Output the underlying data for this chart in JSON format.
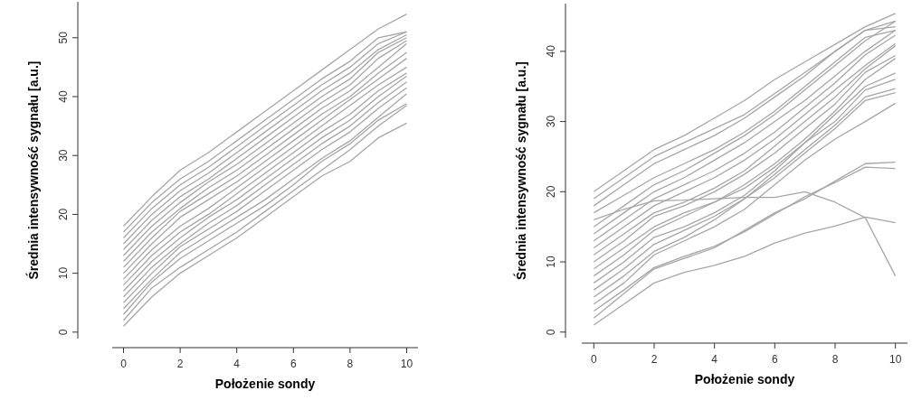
{
  "chart_data": [
    {
      "type": "line",
      "xlabel": "Położenie sondy",
      "ylabel": "Średnia intensywność sygnału [a.u.]",
      "x": [
        0,
        1,
        2,
        3,
        4,
        5,
        6,
        7,
        8,
        9,
        10
      ],
      "xlim": [
        -0.4,
        10.4
      ],
      "ylim": [
        -1.1,
        56.1
      ],
      "xticks": [
        0,
        2,
        4,
        6,
        8,
        10
      ],
      "yticks": [
        0,
        10,
        20,
        30,
        40,
        50
      ],
      "series": [
        {
          "color": "#a6a6a6",
          "values": [
            1,
            6,
            10,
            13,
            16,
            19.5,
            23,
            26.5,
            29,
            33,
            35.5
          ]
        },
        {
          "color": "#a6a6a6",
          "values": [
            2,
            7.5,
            11,
            14,
            17,
            20.5,
            24,
            27.5,
            31,
            35,
            38.5
          ]
        },
        {
          "color": "#a6a6a6",
          "values": [
            3,
            8.5,
            12.5,
            15.5,
            18.5,
            21.5,
            25,
            29,
            32,
            36,
            38.8
          ]
        },
        {
          "color": "#a6a6a6",
          "values": [
            4,
            9,
            13.5,
            16.5,
            19.5,
            22.5,
            26,
            29.5,
            32.5,
            36.5,
            40.5
          ]
        },
        {
          "color": "#a6a6a6",
          "values": [
            5,
            10,
            14.5,
            17.5,
            20.5,
            24,
            27.5,
            31,
            34,
            38,
            41.5
          ]
        },
        {
          "color": "#a6a6a6",
          "values": [
            6,
            11,
            15,
            18.5,
            21.5,
            25,
            28.5,
            32,
            35,
            39,
            42.5
          ]
        },
        {
          "color": "#a6a6a6",
          "values": [
            7,
            12,
            16,
            19.5,
            22.5,
            26,
            29.5,
            33,
            36,
            40,
            43.5
          ]
        },
        {
          "color": "#a6a6a6",
          "values": [
            8,
            13,
            17,
            20,
            23.5,
            27,
            30.5,
            34,
            37,
            41,
            44
          ]
        },
        {
          "color": "#a6a6a6",
          "values": [
            9,
            14,
            18,
            21,
            24.5,
            28,
            31.5,
            35,
            38.5,
            42,
            45
          ]
        },
        {
          "color": "#a6a6a6",
          "values": [
            10,
            15,
            19.5,
            22.5,
            25.5,
            29,
            32.5,
            36,
            39.5,
            43,
            46.5
          ]
        },
        {
          "color": "#a6a6a6",
          "values": [
            11,
            16,
            20.5,
            23.5,
            26.5,
            30,
            33.5,
            37,
            40,
            44,
            47.5
          ]
        },
        {
          "color": "#a6a6a6",
          "values": [
            12,
            17,
            21,
            24.5,
            27.5,
            31,
            34.5,
            38,
            41,
            45,
            49
          ]
        },
        {
          "color": "#a6a6a6",
          "values": [
            13,
            18,
            22,
            25.5,
            28.5,
            32,
            35.5,
            39,
            42,
            46.5,
            49.5
          ]
        },
        {
          "color": "#a6a6a6",
          "values": [
            14,
            19,
            23,
            26,
            29.5,
            33,
            36.5,
            40,
            43,
            47.5,
            50
          ]
        },
        {
          "color": "#a6a6a6",
          "values": [
            15,
            20,
            24,
            27,
            30.5,
            34,
            37.5,
            41,
            44,
            48,
            50.5
          ]
        },
        {
          "color": "#a6a6a6",
          "values": [
            16,
            21,
            25,
            28,
            31.5,
            35,
            38.5,
            42,
            45,
            49,
            51
          ]
        },
        {
          "color": "#a6a6a6",
          "values": [
            17,
            22,
            26,
            29,
            32.5,
            36,
            39.5,
            43,
            46,
            50,
            51
          ]
        },
        {
          "color": "#a6a6a6",
          "values": [
            18,
            23,
            27.5,
            30.5,
            34,
            37.5,
            41,
            44.5,
            48,
            51.5,
            54
          ]
        }
      ]
    },
    {
      "type": "line",
      "xlabel": "Położenie sondy",
      "ylabel": "Średnia intensywność sygnału [a.u.]",
      "x": [
        0,
        1,
        2,
        3,
        4,
        5,
        6,
        7,
        8,
        9,
        10
      ],
      "xlim": [
        -0.4,
        10.4
      ],
      "ylim": [
        -0.8,
        46.8
      ],
      "xticks": [
        0,
        2,
        4,
        6,
        8,
        10
      ],
      "yticks": [
        0,
        10,
        20,
        30,
        40
      ],
      "series": [
        {
          "color": "#a6a6a6",
          "values": [
            1,
            4,
            7,
            8.5,
            9.5,
            10.8,
            12.7,
            14.1,
            15.1,
            16.4,
            15.6
          ]
        },
        {
          "color": "#a6a6a6",
          "values": [
            2,
            5.5,
            9,
            10.5,
            12,
            14.5,
            17,
            19,
            21.5,
            24,
            24.2
          ]
        },
        {
          "color": "#a6a6a6",
          "values": [
            3,
            6,
            9.2,
            10.8,
            12.2,
            14.3,
            16.8,
            19.3,
            21.3,
            23.5,
            23.3
          ]
        },
        {
          "color": "#a6a6a6",
          "values": [
            4,
            7,
            11,
            13,
            15,
            17.5,
            21,
            24.5,
            27.5,
            30,
            32.6
          ]
        },
        {
          "color": "#a6a6a6",
          "values": [
            5,
            8,
            11.5,
            13.5,
            16,
            19,
            22,
            25.5,
            29,
            33,
            34.1
          ]
        },
        {
          "color": "#a6a6a6",
          "values": [
            6,
            9,
            12.5,
            14.5,
            16.5,
            19,
            22.5,
            26,
            29.5,
            33.5,
            34.7
          ]
        },
        {
          "color": "#a6a6a6",
          "values": [
            7,
            10,
            13.5,
            15,
            17,
            19.5,
            23,
            27,
            30,
            34.5,
            36
          ]
        },
        {
          "color": "#a6a6a6",
          "values": [
            8,
            11,
            14.5,
            16.5,
            18.5,
            20.5,
            23.5,
            27,
            31,
            35,
            36.9
          ]
        },
        {
          "color": "#a6a6a6",
          "values": [
            9,
            12,
            15,
            17,
            18.5,
            21,
            24,
            27.5,
            31.5,
            36,
            39
          ]
        },
        {
          "color": "#a6a6a6",
          "values": [
            10,
            13,
            16.5,
            18,
            20,
            22.5,
            25.5,
            29,
            32.5,
            37,
            39.4
          ]
        },
        {
          "color": "#a6a6a6",
          "values": [
            11,
            14,
            17,
            18.5,
            20.5,
            23,
            26.5,
            30,
            33.5,
            37.5,
            40.8
          ]
        },
        {
          "color": "#a6a6a6",
          "values": [
            12,
            15,
            18,
            20,
            22,
            24.5,
            27.5,
            31,
            34.5,
            38,
            41.1
          ]
        },
        {
          "color": "#a6a6a6",
          "values": [
            13,
            16,
            19,
            21,
            23,
            25.5,
            28.5,
            32,
            35.5,
            39.5,
            42.3
          ]
        },
        {
          "color": "#a6a6a6",
          "values": [
            14,
            17,
            20,
            22,
            24.5,
            27,
            30,
            33,
            36.5,
            40,
            43
          ]
        },
        {
          "color": "#a6a6a6",
          "values": [
            15,
            18,
            21,
            23,
            25.5,
            28,
            31,
            34.5,
            38,
            41.5,
            44.3
          ]
        },
        {
          "color": "#a6a6a6",
          "values": [
            16,
            17.5,
            18.7,
            18.8,
            19,
            19.2,
            19.2,
            20,
            18.5,
            16.3,
            8
          ]
        },
        {
          "color": "#a6a6a6",
          "values": [
            17,
            19.5,
            22,
            24,
            26,
            28.5,
            31.5,
            35,
            38.5,
            42,
            43
          ]
        },
        {
          "color": "#a6a6a6",
          "values": [
            18,
            21,
            24,
            26,
            28,
            30.5,
            33.5,
            36.5,
            40,
            43,
            43.5
          ]
        },
        {
          "color": "#a6a6a6",
          "values": [
            19,
            22,
            25,
            27,
            29,
            31,
            34,
            37,
            40,
            43,
            44.3
          ]
        },
        {
          "color": "#a6a6a6",
          "values": [
            20,
            23,
            26,
            28,
            30.5,
            33,
            36,
            38.5,
            41,
            43.5,
            45.4
          ]
        }
      ]
    }
  ]
}
